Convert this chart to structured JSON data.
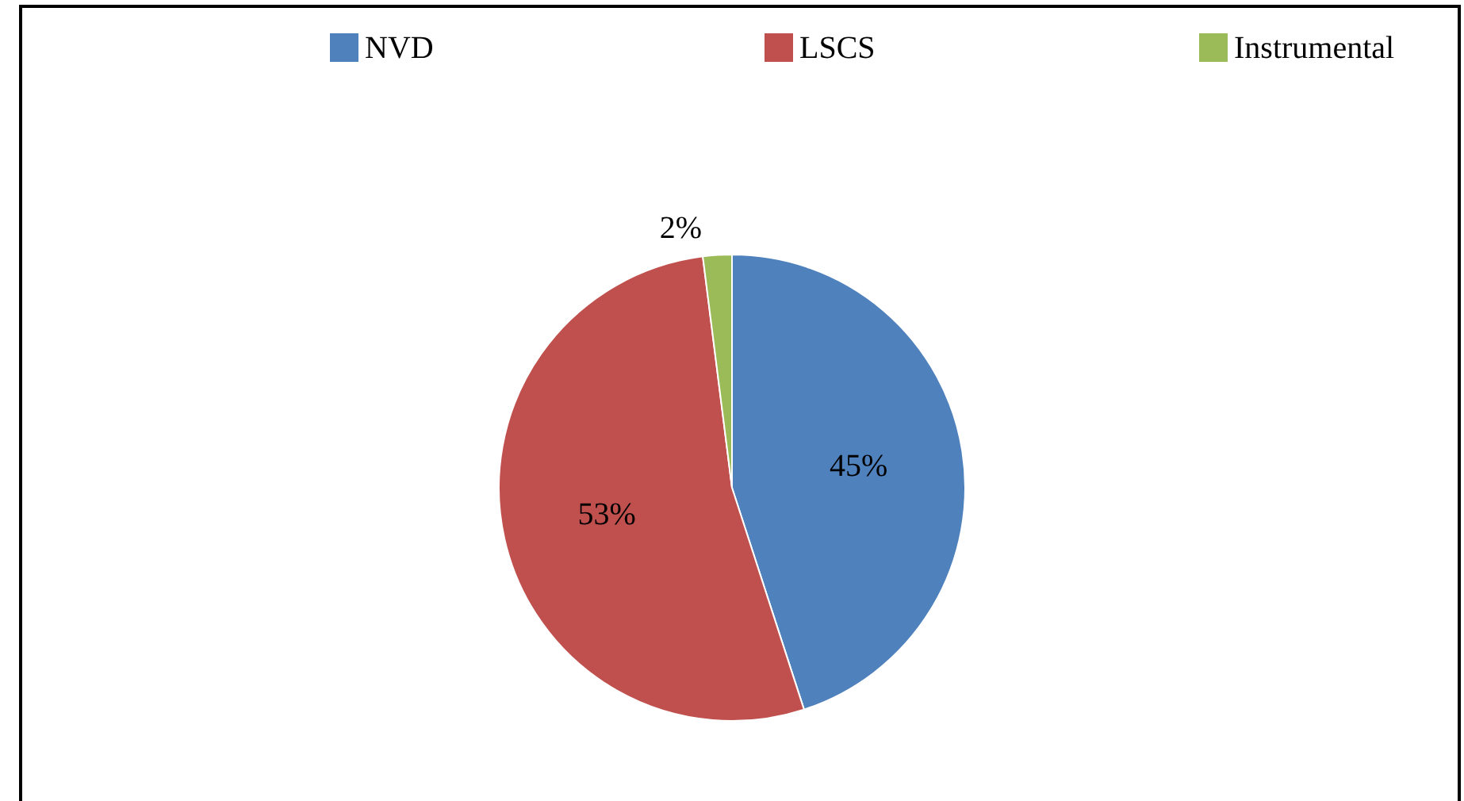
{
  "chart_data": {
    "type": "pie",
    "categories": [
      "NVD",
      "LSCS",
      "Instrumental"
    ],
    "values": [
      45,
      53,
      2
    ],
    "value_labels": [
      "45%",
      "53%",
      "2%"
    ],
    "colors": [
      "#4f81bd",
      "#c0504d",
      "#9bbb59"
    ],
    "legend": "top"
  }
}
